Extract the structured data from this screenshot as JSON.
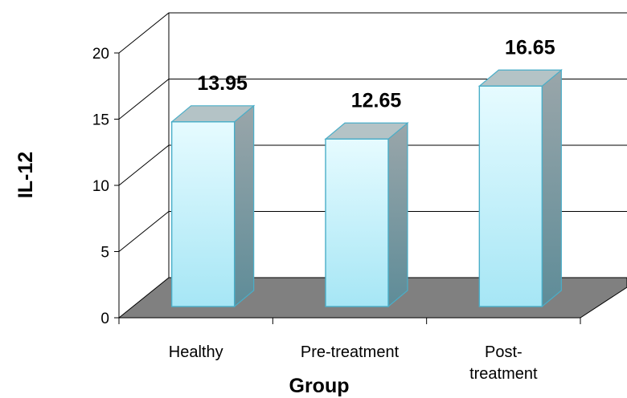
{
  "chart_data": {
    "type": "bar",
    "categories": [
      "Healthy",
      "Pre-treatment",
      "Post-treatment"
    ],
    "category_lines": [
      [
        "Healthy"
      ],
      [
        "Pre-treatment"
      ],
      [
        "Post-",
        "treatment"
      ]
    ],
    "values": [
      13.95,
      12.65,
      16.65
    ],
    "data_labels": [
      "13.95",
      "12.65",
      "16.65"
    ],
    "xlabel": "Group",
    "ylabel": "IL-12",
    "ylim": [
      0,
      20
    ],
    "yticks": [
      0,
      5,
      10,
      15,
      20
    ],
    "grid": true,
    "colors": {
      "bar_front_top": "#e6fbff",
      "bar_front_bottom": "#a6e6f5",
      "bar_side_top": "#9aa6aa",
      "bar_side_bottom": "#5e8c98",
      "bar_top": "#b4c3c6",
      "bar_edge": "#4aaec8",
      "floor": "#808080"
    }
  }
}
